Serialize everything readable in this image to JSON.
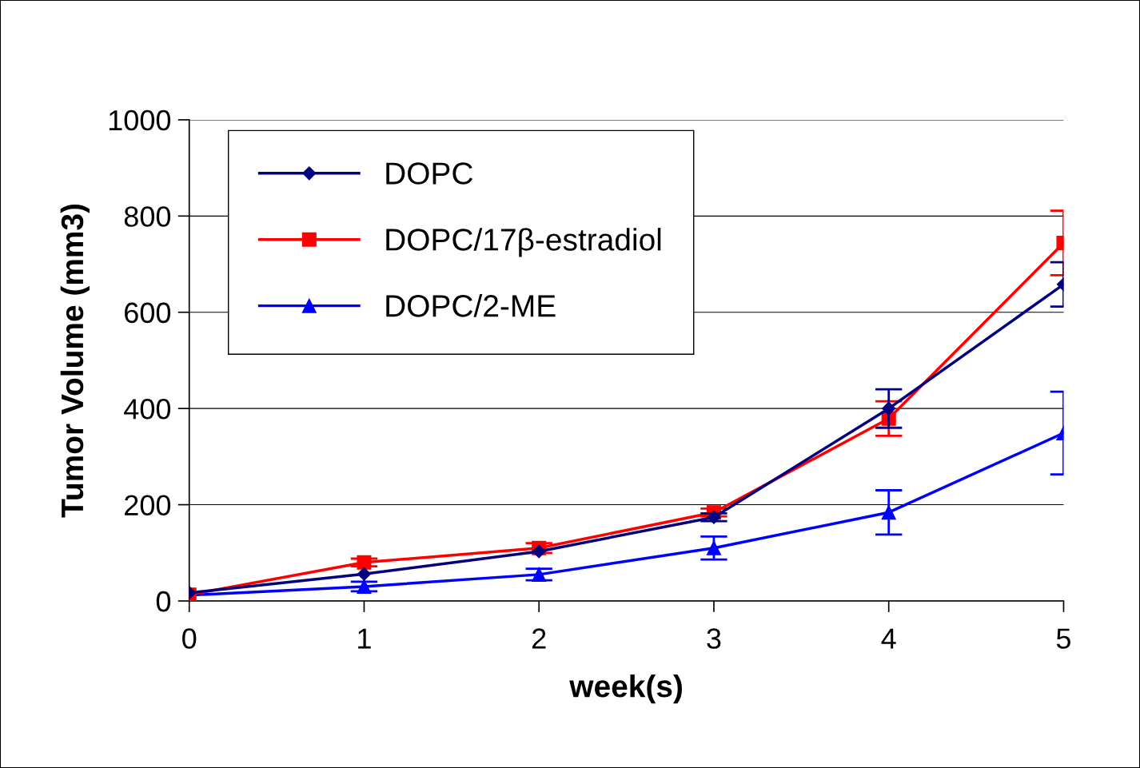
{
  "chart_data": {
    "type": "line",
    "xlabel": "week(s)",
    "ylabel": "Tumor Volume (mm3)",
    "x": [
      0,
      1,
      2,
      3,
      4,
      5
    ],
    "series": [
      {
        "name": "DOPC",
        "color": "#000080",
        "marker": "diamond",
        "values": [
          17,
          56,
          103,
          174,
          400,
          658
        ],
        "errors": [
          null,
          null,
          null,
          8,
          40,
          46
        ]
      },
      {
        "name": "DOPC/17β-estradiol",
        "color": "#ff0000",
        "marker": "square",
        "values": [
          13,
          80,
          110,
          184,
          379,
          744
        ],
        "errors": [
          null,
          8,
          10,
          8,
          36,
          67
        ]
      },
      {
        "name": "DOPC/2-ME",
        "color": "#0000ff",
        "marker": "triangle",
        "values": [
          12,
          30,
          55,
          110,
          184,
          349
        ],
        "errors": [
          null,
          10,
          12,
          24,
          46,
          86
        ]
      }
    ],
    "xlim": [
      0,
      5
    ],
    "xticks": [
      0,
      1,
      2,
      3,
      4,
      5
    ],
    "ylim": [
      0,
      1000
    ],
    "yticks": [
      0,
      200,
      400,
      600,
      800,
      1000
    ],
    "grid": "y",
    "legend": "top left",
    "line_style": "solid"
  }
}
